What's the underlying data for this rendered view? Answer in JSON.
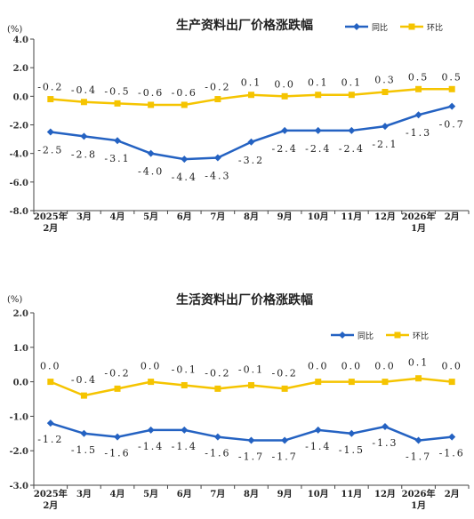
{
  "colors": {
    "yoy": "#2462c2",
    "mom": "#f5c400",
    "axis": "#444444",
    "text": "#222222"
  },
  "chart_data": [
    {
      "type": "line",
      "title": "生产资料出厂价格涨跌幅",
      "unit_label": "(%)",
      "categories": [
        "2025年\n2月",
        "3月",
        "4月",
        "5月",
        "6月",
        "7月",
        "8月",
        "9月",
        "10月",
        "11月",
        "12月",
        "2026年\n1月",
        "2月"
      ],
      "yticks": [
        "4.0",
        "2.0",
        "0.0",
        "-2.0",
        "-4.0",
        "-6.0",
        "-8.0"
      ],
      "ylim": [
        -8,
        4
      ],
      "legend": [
        "同比",
        "环比"
      ],
      "legend_position": "top-right",
      "series": [
        {
          "name": "同比",
          "values": [
            -2.5,
            -2.8,
            -3.1,
            -4.0,
            -4.4,
            -4.3,
            -3.2,
            -2.4,
            -2.4,
            -2.4,
            -2.1,
            -1.3,
            -0.7
          ],
          "labels": [
            "-2.5",
            "-2.8",
            "-3.1",
            "-4.0",
            "-4.4",
            "-4.3",
            "-3.2",
            "-2.4",
            "-2.4",
            "-2.4",
            "-2.1",
            "-1.3",
            "-0.7"
          ]
        },
        {
          "name": "环比",
          "values": [
            -0.2,
            -0.4,
            -0.5,
            -0.6,
            -0.6,
            -0.2,
            0.1,
            0.0,
            0.1,
            0.1,
            0.3,
            0.5,
            0.5
          ],
          "labels": [
            "-0.2",
            "-0.4",
            "-0.5",
            "-0.6",
            "-0.6",
            "-0.2",
            "0.1",
            "0.0",
            "0.1",
            "0.1",
            "0.3",
            "0.5",
            "0.5"
          ]
        }
      ]
    },
    {
      "type": "line",
      "title": "生活资料出厂价格涨跌幅",
      "unit_label": "(%)",
      "categories": [
        "2025年\n2月",
        "3月",
        "4月",
        "5月",
        "6月",
        "7月",
        "8月",
        "9月",
        "10月",
        "11月",
        "12月",
        "2026年\n1月",
        "2月"
      ],
      "yticks": [
        "2.0",
        "1.0",
        "0.0",
        "-1.0",
        "-2.0",
        "-3.0"
      ],
      "ylim": [
        -3,
        2
      ],
      "legend": [
        "同比",
        "环比"
      ],
      "legend_position": "top-right",
      "series": [
        {
          "name": "同比",
          "values": [
            -1.2,
            -1.5,
            -1.6,
            -1.4,
            -1.4,
            -1.6,
            -1.7,
            -1.7,
            -1.4,
            -1.5,
            -1.3,
            -1.7,
            -1.6
          ],
          "labels": [
            "-1.2",
            "-1.5",
            "-1.6",
            "-1.4",
            "-1.4",
            "-1.6",
            "-1.7",
            "-1.7",
            "-1.4",
            "-1.5",
            "-1.3",
            "-1.7",
            "-1.6"
          ]
        },
        {
          "name": "环比",
          "values": [
            0.0,
            -0.4,
            -0.2,
            0.0,
            -0.1,
            -0.2,
            -0.1,
            -0.2,
            0.0,
            0.0,
            0.0,
            0.1,
            0.0
          ],
          "labels": [
            "0.0",
            "-0.4",
            "-0.2",
            "0.0",
            "-0.1",
            "-0.2",
            "-0.1",
            "-0.2",
            "0.0",
            "0.0",
            "0.0",
            "0.1",
            "0.0"
          ]
        }
      ]
    }
  ]
}
